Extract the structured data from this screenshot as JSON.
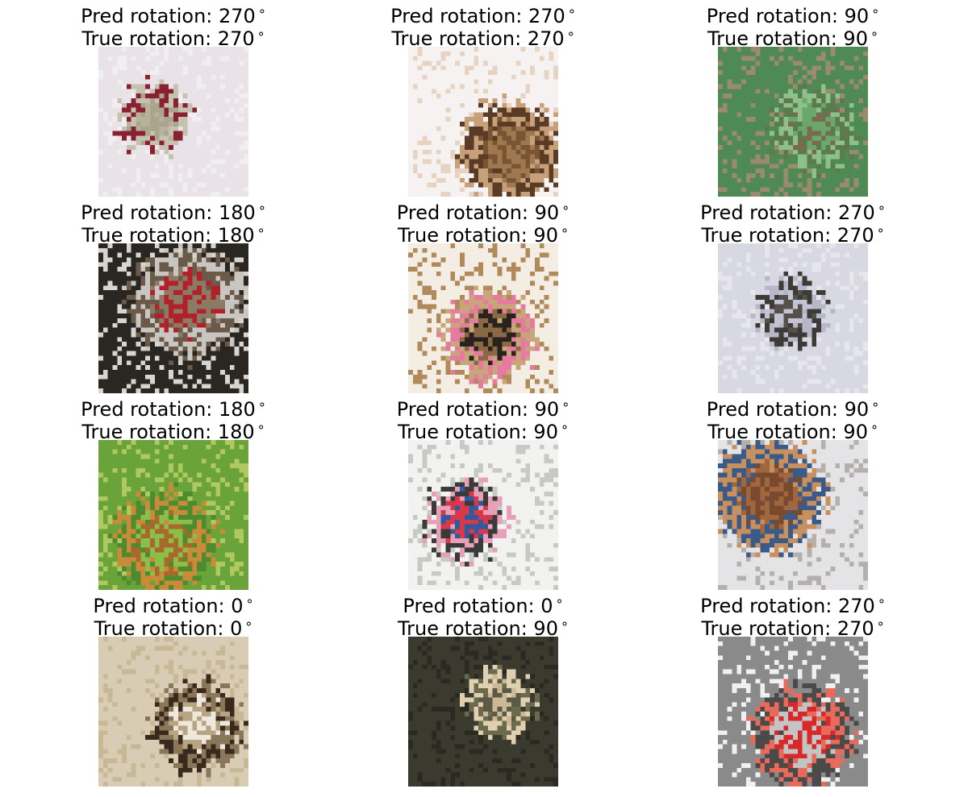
{
  "figure": {
    "rows": 4,
    "cols": 3,
    "panels": [
      {
        "pred": "Pred rotation: 270$^\\circ$",
        "pred_label": "Pred rotation: 270",
        "true_label": "True rotation: 270",
        "pred_deg": 270,
        "true_deg": 270,
        "subject": "cat-with-text",
        "palette": [
          "#e9e2e6",
          "#b7b39a",
          "#a9a68d",
          "#c6c1b0",
          "#8a2131",
          "#f1eef2"
        ]
      },
      {
        "pred_label": "Pred rotation: 270",
        "true_label": "True rotation: 270",
        "pred_deg": 270,
        "true_deg": 270,
        "subject": "brown-animal",
        "palette": [
          "#f6f2f1",
          "#7a5534",
          "#a07850",
          "#c7a07a",
          "#5a3b25",
          "#e6d3c2"
        ]
      },
      {
        "pred_label": "Pred rotation: 90",
        "true_label": "True rotation: 90",
        "pred_deg": 90,
        "true_deg": 90,
        "subject": "deer-in-grass",
        "palette": [
          "#4f8a55",
          "#6aa86a",
          "#7a6a52",
          "#5b7a4e",
          "#8fbf8a",
          "#9a8a6e"
        ]
      },
      {
        "pred_label": "Pred rotation: 180",
        "true_label": "True rotation: 180",
        "pred_deg": 180,
        "true_deg": 180,
        "subject": "red-truck",
        "palette": [
          "#2a2622",
          "#b2202a",
          "#8b7a64",
          "#c9c6c2",
          "#6b5a4a",
          "#d8d4cf"
        ]
      },
      {
        "pred_label": "Pred rotation: 90",
        "true_label": "True rotation: 90",
        "pred_deg": 90,
        "true_deg": 90,
        "subject": "dog-face",
        "palette": [
          "#f4ede4",
          "#8a6a44",
          "#2a221c",
          "#c9a67a",
          "#e77aa0",
          "#b08a5a"
        ]
      },
      {
        "pred_label": "Pred rotation: 270",
        "true_label": "True rotation: 270",
        "pred_deg": 270,
        "true_deg": 270,
        "subject": "bird-in-sky",
        "palette": [
          "#d8d8e2",
          "#c2c4d4",
          "#55504a",
          "#3e3a36",
          "#b6b8ca",
          "#e6e6ec"
        ]
      },
      {
        "pred_label": "Pred rotation: 180",
        "true_label": "True rotation: 180",
        "pred_deg": 180,
        "true_deg": 180,
        "subject": "animal-on-grass",
        "palette": [
          "#6aa33a",
          "#8cbf4a",
          "#a86a2a",
          "#c98a3a",
          "#4e8a2e",
          "#b0c860"
        ]
      },
      {
        "pred_label": "Pred rotation: 90",
        "true_label": "True rotation: 90",
        "pred_deg": 90,
        "true_deg": 90,
        "subject": "red-car",
        "palette": [
          "#f2f2f0",
          "#d8394a",
          "#2e5aa0",
          "#e8a0b8",
          "#3a3a3a",
          "#c8c8c4"
        ]
      },
      {
        "pred_label": "Pred rotation: 90",
        "true_label": "True rotation: 90",
        "pred_deg": 90,
        "true_deg": 90,
        "subject": "horse-and-rider",
        "palette": [
          "#e4e4e6",
          "#a06640",
          "#7a4a2e",
          "#3a5a8a",
          "#c8905e",
          "#b6b0ac"
        ]
      },
      {
        "pred_label": "Pred rotation: 0",
        "true_label": "True rotation: 0",
        "pred_deg": 0,
        "true_deg": 0,
        "subject": "golden-dog",
        "palette": [
          "#d8cdb4",
          "#b8a482",
          "#eee8dc",
          "#3a2a1e",
          "#8a7658",
          "#c8b896"
        ]
      },
      {
        "pred_label": "Pred rotation: 0",
        "true_label": "True rotation: 90",
        "pred_deg": 0,
        "true_deg": 90,
        "subject": "pale-animal-in-forest",
        "palette": [
          "#3a3a2e",
          "#5a5a46",
          "#cdb796",
          "#e0d0b0",
          "#6a6a4e",
          "#2a2a22"
        ]
      },
      {
        "pred_label": "Pred rotation: 270",
        "true_label": "True rotation: 270",
        "pred_deg": 270,
        "true_deg": 270,
        "subject": "red-truck-side",
        "palette": [
          "#8a8a8a",
          "#d8282a",
          "#c4c4c4",
          "#e86a5a",
          "#4a4a4a",
          "#f0f0f0"
        ]
      }
    ]
  }
}
